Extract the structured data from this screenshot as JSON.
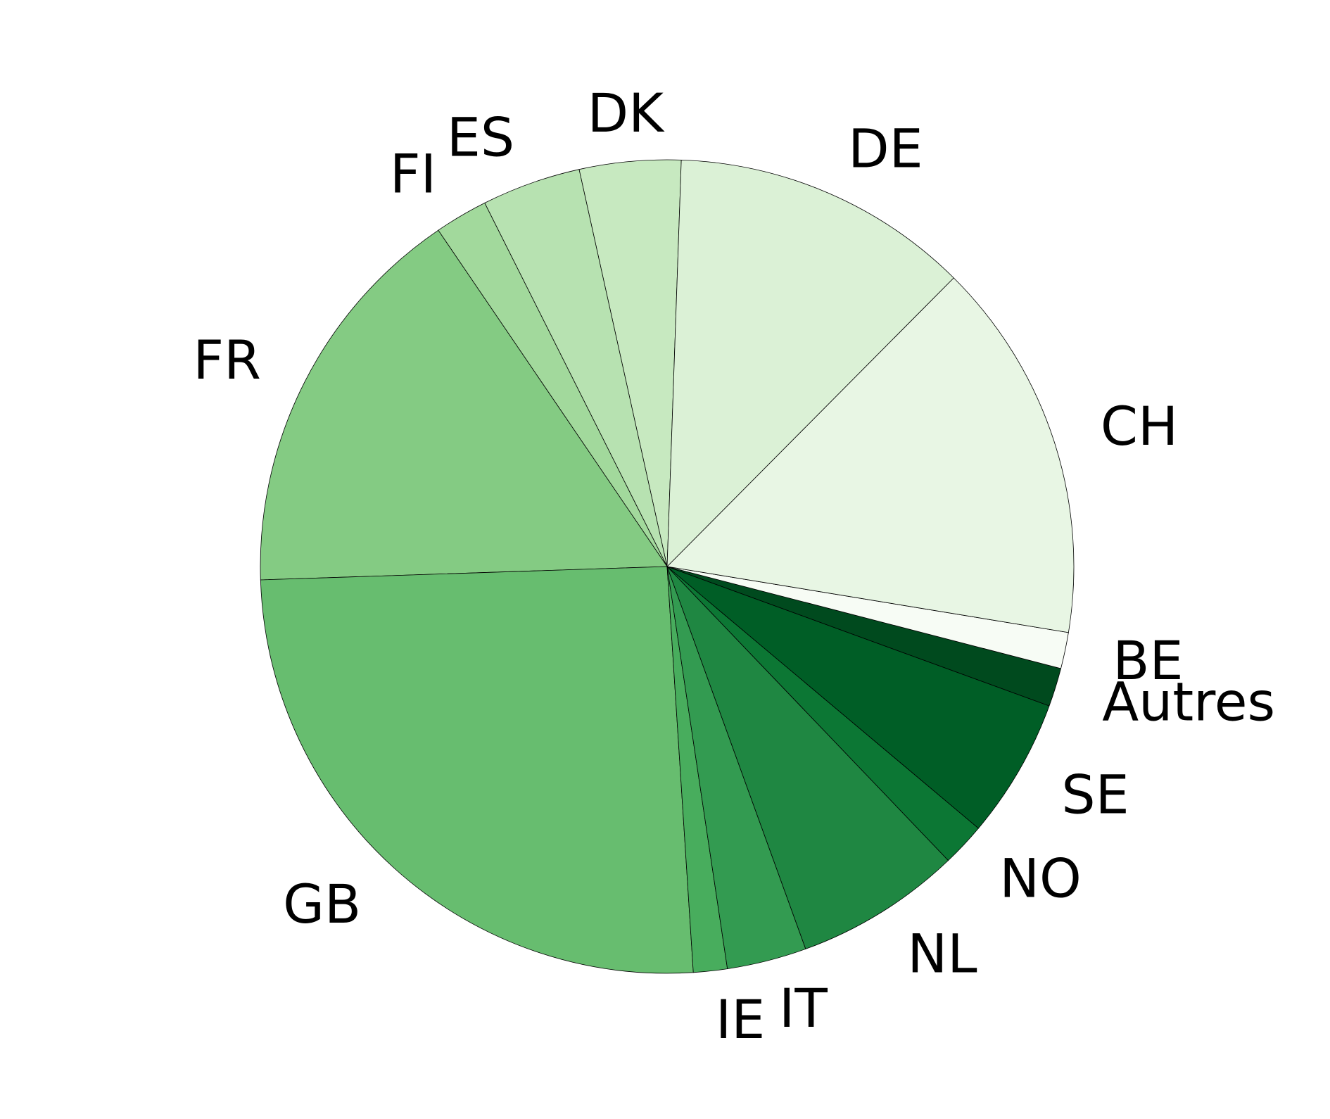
{
  "chart_data": {
    "type": "pie",
    "start_angle_deg": 88,
    "direction": "counterclockwise",
    "slices": [
      {
        "label": "DK",
        "value": 4.2,
        "color": "#c7e9c0"
      },
      {
        "label": "ES",
        "value": 4.1,
        "color": "#b7e2b1"
      },
      {
        "label": "FI",
        "value": 2.2,
        "color": "#a2d99c"
      },
      {
        "label": "FR",
        "value": 16.7,
        "color": "#84cb83"
      },
      {
        "label": "GB",
        "value": 26.6,
        "color": "#67bd6f"
      },
      {
        "label": "IE",
        "value": 1.4,
        "color": "#48ad5d"
      },
      {
        "label": "IT",
        "value": 3.3,
        "color": "#339b51"
      },
      {
        "label": "NL",
        "value": 6.9,
        "color": "#1f8742"
      },
      {
        "label": "NO",
        "value": 1.8,
        "color": "#0c7734"
      },
      {
        "label": "SE",
        "value": 5.8,
        "color": "#005e26"
      },
      {
        "label": "Autres",
        "value": 1.6,
        "color": "#004a1e"
      },
      {
        "label": "BE",
        "value": 1.5,
        "color": "#f7fcf5"
      },
      {
        "label": "CH",
        "value": 15.8,
        "color": "#e8f6e4"
      },
      {
        "label": "DE",
        "value": 12.4,
        "color": "#dbf1d6"
      }
    ]
  }
}
